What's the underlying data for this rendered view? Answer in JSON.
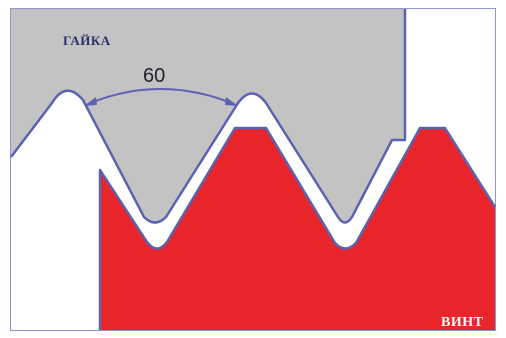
{
  "labels": {
    "nut": "ГАЙКА",
    "screw": "ВИНТ",
    "angle": "60"
  },
  "colors": {
    "nut_fill": "#c3c3c3",
    "screw_fill": "#e8252b",
    "outline": "#5b63b0",
    "background": "#ffffff"
  }
}
